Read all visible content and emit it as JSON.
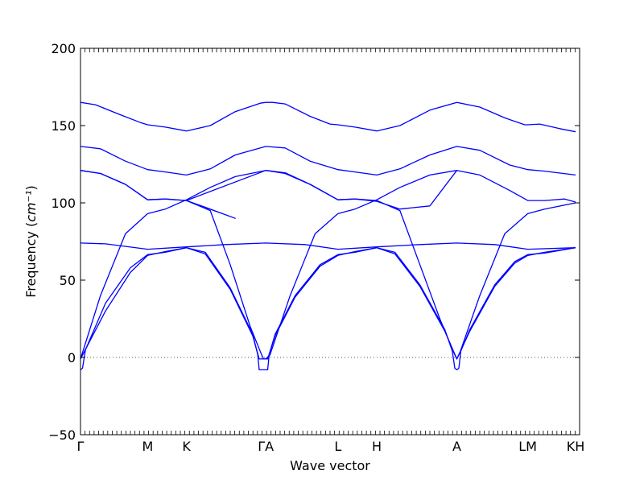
{
  "chart_data": {
    "type": "line",
    "title": "",
    "xlabel": "Wave vector",
    "ylabel": "Frequency",
    "ylabel_unit": "cm⁻¹",
    "ylim": [
      -50,
      200
    ],
    "yticks": [
      -50,
      0,
      50,
      100,
      150,
      200
    ],
    "ytick_labels": [
      "−50",
      "0",
      "50",
      "100",
      "150",
      "200"
    ],
    "grid": false,
    "legend": "none",
    "zero_line": {
      "y": 0,
      "style": "dotted",
      "color": "#555555"
    },
    "line_color": "#0000ff",
    "path_points": [
      {
        "label": "Γ",
        "pos": 0.0
      },
      {
        "label": "M",
        "pos": 0.1345
      },
      {
        "label": "K",
        "pos": 0.2122
      },
      {
        "label": "ΓA",
        "pos": 0.3713
      },
      {
        "label": "L",
        "pos": 0.5158
      },
      {
        "label": "H",
        "pos": 0.5935
      },
      {
        "label": "A",
        "pos": 0.754
      },
      {
        "label": "LM",
        "pos": 0.8961
      },
      {
        "label": "KH",
        "pos": 0.9919
      }
    ],
    "x_range": [
      0,
      1
    ],
    "series": [
      {
        "points": [
          [
            0.0,
            165
          ],
          [
            0.03,
            163.5
          ],
          [
            0.08,
            157
          ],
          [
            0.12,
            152
          ],
          [
            0.1345,
            150.5
          ],
          [
            0.17,
            149
          ],
          [
            0.2122,
            146.5
          ],
          [
            0.26,
            150
          ],
          [
            0.31,
            159
          ],
          [
            0.36,
            164.5
          ],
          [
            0.3713,
            165
          ],
          [
            0.385,
            165
          ],
          [
            0.41,
            164
          ],
          [
            0.46,
            156
          ],
          [
            0.5,
            151
          ],
          [
            0.5158,
            150.5
          ],
          [
            0.55,
            149
          ],
          [
            0.5935,
            146.5
          ],
          [
            0.64,
            150
          ],
          [
            0.7,
            160
          ],
          [
            0.754,
            165
          ],
          [
            0.8,
            162
          ],
          [
            0.85,
            155
          ],
          [
            0.89,
            150.5
          ],
          [
            0.8961,
            150.5
          ],
          [
            0.92,
            151
          ],
          [
            0.96,
            148
          ],
          [
            0.9919,
            146
          ]
        ]
      },
      {
        "points": [
          [
            0.0,
            136.5
          ],
          [
            0.04,
            135
          ],
          [
            0.09,
            127
          ],
          [
            0.1345,
            121.5
          ],
          [
            0.17,
            120
          ],
          [
            0.2122,
            118
          ],
          [
            0.26,
            122
          ],
          [
            0.31,
            131
          ],
          [
            0.3713,
            136.5
          ],
          [
            0.41,
            135.5
          ],
          [
            0.46,
            127
          ],
          [
            0.5158,
            121.5
          ],
          [
            0.55,
            120
          ],
          [
            0.5935,
            118
          ],
          [
            0.64,
            122
          ],
          [
            0.7,
            131
          ],
          [
            0.754,
            136.5
          ],
          [
            0.8,
            134
          ],
          [
            0.86,
            124.5
          ],
          [
            0.8961,
            121.5
          ],
          [
            0.93,
            120.5
          ],
          [
            0.9919,
            118
          ]
        ]
      },
      {
        "points": [
          [
            0.0,
            121
          ],
          [
            0.04,
            119
          ],
          [
            0.09,
            112
          ],
          [
            0.1345,
            102
          ],
          [
            0.17,
            102.5
          ],
          [
            0.2122,
            101.5
          ],
          [
            0.26,
            96
          ],
          [
            0.31,
            90
          ],
          [
            0.2122,
            101.5
          ],
          [
            0.3713,
            121
          ],
          [
            0.41,
            119
          ],
          [
            0.46,
            112
          ],
          [
            0.5158,
            102
          ],
          [
            0.55,
            102.5
          ],
          [
            0.5935,
            101
          ],
          [
            0.64,
            96
          ],
          [
            0.7,
            98
          ],
          [
            0.754,
            121
          ]
        ]
      },
      {
        "points": [
          [
            0.0,
            121
          ],
          [
            0.04,
            119
          ],
          [
            0.09,
            112
          ],
          [
            0.1345,
            102
          ],
          [
            0.17,
            102.5
          ],
          [
            0.2122,
            101.5
          ]
        ]
      },
      {
        "points": [
          [
            0.2122,
            101.5
          ],
          [
            0.26,
            95
          ],
          [
            0.3,
            60
          ],
          [
            0.34,
            20
          ],
          [
            0.3625,
            2
          ],
          [
            0.367,
            -1
          ],
          [
            0.3713,
            -1
          ],
          [
            0.375,
            -1
          ],
          [
            0.38,
            2
          ]
        ]
      },
      {
        "points": [
          [
            0.1345,
            93
          ],
          [
            0.17,
            96
          ],
          [
            0.2122,
            102
          ],
          [
            0.26,
            110
          ],
          [
            0.31,
            117
          ],
          [
            0.3713,
            121
          ]
        ]
      },
      {
        "points": [
          [
            0.3713,
            121
          ],
          [
            0.41,
            119.5
          ],
          [
            0.46,
            112
          ],
          [
            0.5158,
            102
          ],
          [
            0.55,
            102.5
          ],
          [
            0.5935,
            101.5
          ]
        ]
      },
      {
        "points": [
          [
            0.5935,
            101.5
          ],
          [
            0.64,
            95
          ],
          [
            0.68,
            60
          ],
          [
            0.72,
            25
          ],
          [
            0.748,
            3
          ],
          [
            0.754,
            -1
          ],
          [
            0.76,
            3
          ],
          [
            0.8,
            40
          ],
          [
            0.85,
            80
          ],
          [
            0.8961,
            93
          ],
          [
            0.93,
            96
          ],
          [
            0.9919,
            100
          ]
        ]
      },
      {
        "points": [
          [
            0.5158,
            93
          ],
          [
            0.55,
            96
          ],
          [
            0.5935,
            102
          ],
          [
            0.64,
            110
          ],
          [
            0.7,
            118
          ],
          [
            0.754,
            121
          ],
          [
            0.8,
            118
          ],
          [
            0.86,
            108
          ],
          [
            0.8961,
            101.5
          ],
          [
            0.93,
            101.5
          ],
          [
            0.97,
            102.5
          ],
          [
            0.9919,
            100.5
          ]
        ]
      },
      {
        "points": [
          [
            0.0,
            -1
          ],
          [
            0.04,
            40
          ],
          [
            0.09,
            80
          ],
          [
            0.1345,
            93
          ]
        ]
      },
      {
        "points": [
          [
            0.3713,
            -1
          ],
          [
            0.38,
            2
          ],
          [
            0.42,
            40
          ],
          [
            0.47,
            80
          ],
          [
            0.5158,
            93
          ]
        ]
      },
      {
        "points": [
          [
            0.0,
            74
          ],
          [
            0.05,
            73.5
          ],
          [
            0.1345,
            70
          ],
          [
            0.2122,
            71.5
          ],
          [
            0.29,
            73
          ],
          [
            0.3713,
            74
          ],
          [
            0.45,
            73
          ],
          [
            0.5158,
            70
          ],
          [
            0.5935,
            71.5
          ],
          [
            0.68,
            73
          ],
          [
            0.754,
            74
          ],
          [
            0.83,
            73
          ],
          [
            0.8961,
            70
          ],
          [
            0.9919,
            71
          ]
        ]
      },
      {
        "points": [
          [
            0.0,
            -8
          ],
          [
            0.004,
            -7
          ],
          [
            0.01,
            5
          ],
          [
            0.05,
            35
          ],
          [
            0.1,
            58
          ],
          [
            0.1345,
            66.5
          ],
          [
            0.17,
            68
          ],
          [
            0.2122,
            71
          ],
          [
            0.25,
            68
          ],
          [
            0.3,
            45
          ],
          [
            0.345,
            15
          ],
          [
            0.355,
            2
          ],
          [
            0.358,
            -8
          ],
          [
            0.375,
            -8
          ],
          [
            0.378,
            2
          ],
          [
            0.39,
            15
          ],
          [
            0.43,
            40
          ],
          [
            0.48,
            60
          ],
          [
            0.5158,
            66.5
          ],
          [
            0.55,
            68
          ],
          [
            0.5935,
            71
          ],
          [
            0.63,
            68
          ],
          [
            0.68,
            47
          ],
          [
            0.73,
            18
          ],
          [
            0.745,
            4
          ],
          [
            0.75,
            -7
          ],
          [
            0.754,
            -8
          ],
          [
            0.758,
            -7
          ],
          [
            0.762,
            4
          ],
          [
            0.78,
            18
          ],
          [
            0.83,
            47
          ],
          [
            0.87,
            62
          ],
          [
            0.8961,
            66.5
          ],
          [
            0.93,
            67.5
          ],
          [
            0.9919,
            71
          ]
        ]
      },
      {
        "points": [
          [
            0.0,
            -1
          ],
          [
            0.05,
            30
          ],
          [
            0.1,
            55
          ],
          [
            0.1345,
            66
          ],
          [
            0.17,
            68.5
          ],
          [
            0.2122,
            71
          ],
          [
            0.25,
            67
          ],
          [
            0.3,
            44
          ],
          [
            0.345,
            14
          ],
          [
            0.358,
            -1
          ],
          [
            0.3713,
            -1
          ],
          [
            0.375,
            -1
          ],
          [
            0.39,
            14
          ],
          [
            0.43,
            39
          ],
          [
            0.48,
            59
          ],
          [
            0.5158,
            66
          ],
          [
            0.55,
            68.5
          ],
          [
            0.5935,
            71
          ],
          [
            0.63,
            67
          ],
          [
            0.68,
            46
          ],
          [
            0.73,
            17
          ],
          [
            0.754,
            -1
          ],
          [
            0.78,
            17
          ],
          [
            0.83,
            46
          ],
          [
            0.87,
            61
          ],
          [
            0.8961,
            66
          ],
          [
            0.93,
            68
          ],
          [
            0.9919,
            71
          ]
        ]
      }
    ]
  }
}
